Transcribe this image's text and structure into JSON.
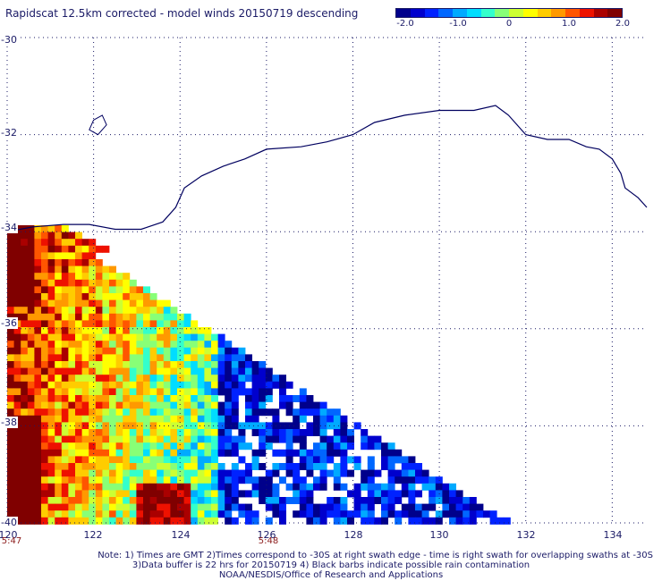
{
  "title": "Rapidscat 12.5km corrected - model winds 20150719 descending",
  "colorbar": {
    "labels": [
      "-2.0",
      "-1.0",
      "0",
      "1.0",
      "2.0"
    ],
    "range": [
      -2.0,
      2.0
    ],
    "colors": [
      "#00008b",
      "#0000cd",
      "#0022ff",
      "#0066ff",
      "#00aaff",
      "#00ddff",
      "#33ffcc",
      "#88ff77",
      "#ccff33",
      "#ffff00",
      "#ffcc00",
      "#ff9900",
      "#ff5500",
      "#ee1100",
      "#aa0000",
      "#800000"
    ]
  },
  "map": {
    "lon_labels": [
      "120",
      "122",
      "124",
      "126",
      "128",
      "130",
      "132",
      "134"
    ],
    "lat_labels": [
      "-30",
      "-32",
      "-34",
      "-36",
      "-38",
      "-40"
    ],
    "lon_range": [
      120,
      134.8
    ],
    "lat_range": [
      -30,
      -40
    ],
    "coastline_color": "#00005f",
    "grid": true
  },
  "times": [
    {
      "label": "5:47",
      "lon": 120
    },
    {
      "label": "5:48",
      "lon": 126
    }
  ],
  "footer": {
    "line1": "Note: 1) Times are GMT 2)Times correspond to -30S at right swath edge - time is right swath for overlapping swaths at -30S",
    "line2": "3)Data buffer is 22 hrs for 20150719 4) Black barbs indicate possible rain contamination",
    "line3": "NOAA/NESDIS/Office of Research and Applications"
  }
}
